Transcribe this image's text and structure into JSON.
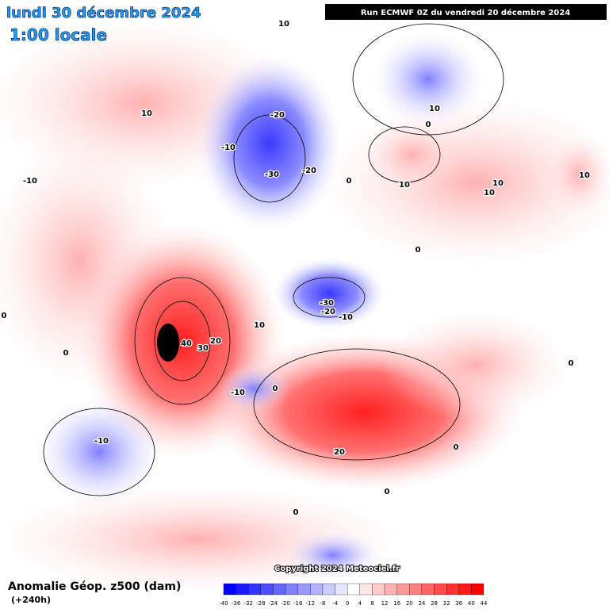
{
  "header": {
    "date": "lundi 30 décembre 2024",
    "time": "1:00 locale",
    "run": "Run ECMWF 0Z du vendredi 20 décembre 2024"
  },
  "footer": {
    "title": "Anomalie Géop. z500 (dam)",
    "lead": "(+240h)",
    "copyright": "Copyright 2024 Meteociel.fr"
  },
  "contour_labels": [
    10,
    10,
    -20,
    -10,
    -30,
    -20,
    -10,
    0,
    10,
    0,
    10,
    10,
    10,
    10,
    0,
    -30,
    -20,
    -10,
    10,
    40,
    30,
    20,
    0,
    0,
    -10,
    0,
    -10,
    20,
    0,
    0,
    0,
    0
  ],
  "colorbar": {
    "labels": [
      -40,
      -36,
      -32,
      -28,
      -24,
      -20,
      -16,
      -12,
      -8,
      -4,
      0,
      4,
      8,
      12,
      16,
      20,
      24,
      28,
      32,
      36,
      40,
      44
    ],
    "colors": [
      "#0000ff",
      "#1a1aff",
      "#3333ff",
      "#4d4dff",
      "#6666ff",
      "#8080ff",
      "#9999ff",
      "#b3b3ff",
      "#ccccff",
      "#e6e6ff",
      "#ffffff",
      "#ffe6e6",
      "#ffcccc",
      "#ffb3b3",
      "#ff9999",
      "#ff8080",
      "#ff6666",
      "#ff4d4d",
      "#ff3333",
      "#ff1a1a",
      "#ff0000"
    ]
  }
}
